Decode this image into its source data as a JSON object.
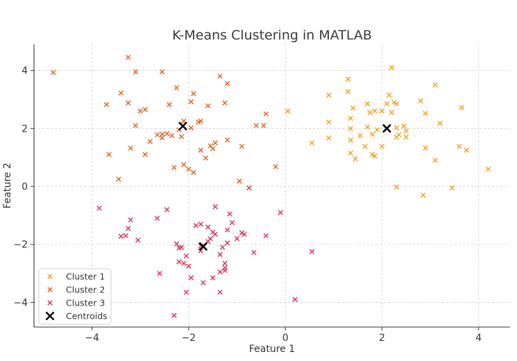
{
  "chart_data": {
    "type": "scatter",
    "title": "K-Means Clustering in MATLAB",
    "xlabel": "Feature 1",
    "ylabel": "Feature 2",
    "xlim": [
      -5.2,
      4.65
    ],
    "ylim": [
      -4.85,
      4.9
    ],
    "xticks": [
      -4,
      -2,
      0,
      2,
      4
    ],
    "yticks": [
      -4,
      -2,
      0,
      2,
      4
    ],
    "grid": true,
    "legend_position": "lower-left",
    "series": [
      {
        "name": "Cluster 1",
        "marker": "x",
        "color": "#F0A325",
        "points": [
          [
            2.2,
            4.1
          ],
          [
            1.3,
            3.7
          ],
          [
            1.3,
            3.27
          ],
          [
            3.1,
            3.5
          ],
          [
            0.9,
            3.15
          ],
          [
            2.15,
            3.15
          ],
          [
            2.25,
            2.9
          ],
          [
            2.8,
            2.95
          ],
          [
            1.7,
            2.85
          ],
          [
            2.1,
            2.85
          ],
          [
            2.3,
            2.85
          ],
          [
            3.65,
            2.72
          ],
          [
            1.4,
            2.7
          ],
          [
            1.85,
            2.6
          ],
          [
            1.75,
            2.55
          ],
          [
            2.0,
            2.6
          ],
          [
            2.2,
            2.55
          ],
          [
            2.9,
            2.52
          ],
          [
            0.05,
            2.6
          ],
          [
            1.35,
            2.35
          ],
          [
            0.9,
            2.22
          ],
          [
            3.2,
            2.18
          ],
          [
            1.35,
            2.0
          ],
          [
            1.7,
            2.05
          ],
          [
            2.3,
            2.02
          ],
          [
            2.45,
            2.08
          ],
          [
            2.5,
            1.92
          ],
          [
            1.9,
            1.95
          ],
          [
            2.3,
            1.7
          ],
          [
            2.5,
            1.7
          ],
          [
            2.35,
            1.78
          ],
          [
            1.55,
            1.75
          ],
          [
            1.8,
            1.8
          ],
          [
            1.35,
            1.6
          ],
          [
            0.9,
            1.67
          ],
          [
            0.55,
            1.5
          ],
          [
            1.65,
            1.38
          ],
          [
            2.0,
            1.38
          ],
          [
            2.9,
            1.33
          ],
          [
            3.6,
            1.38
          ],
          [
            3.75,
            1.25
          ],
          [
            1.35,
            1.15
          ],
          [
            1.8,
            1.1
          ],
          [
            1.85,
            1.05
          ],
          [
            1.45,
            0.95
          ],
          [
            3.1,
            0.9
          ],
          [
            4.2,
            0.6
          ],
          [
            2.3,
            -0.02
          ],
          [
            3.45,
            -0.05
          ],
          [
            2.85,
            -0.3
          ]
        ]
      },
      {
        "name": "Cluster 2",
        "marker": "x",
        "color": "#E0682A",
        "points": [
          [
            -3.25,
            4.45
          ],
          [
            -4.8,
            3.93
          ],
          [
            -3.1,
            3.95
          ],
          [
            -2.55,
            3.95
          ],
          [
            -1.35,
            3.8
          ],
          [
            -1.2,
            3.55
          ],
          [
            -2.25,
            3.4
          ],
          [
            -3.4,
            3.22
          ],
          [
            -1.9,
            3.2
          ],
          [
            -3.7,
            2.82
          ],
          [
            -3.25,
            2.88
          ],
          [
            -1.95,
            2.92
          ],
          [
            -1.25,
            2.88
          ],
          [
            -2.4,
            2.82
          ],
          [
            -1.6,
            2.78
          ],
          [
            -2.9,
            2.65
          ],
          [
            -3.0,
            2.6
          ],
          [
            -0.4,
            2.5
          ],
          [
            -2.1,
            2.25
          ],
          [
            -1.75,
            2.25
          ],
          [
            -1.8,
            2.22
          ],
          [
            -0.6,
            2.1
          ],
          [
            -0.45,
            2.1
          ],
          [
            -3.1,
            2.1
          ],
          [
            -1.95,
            2.02
          ],
          [
            -2.2,
            1.95
          ],
          [
            -2.45,
            1.82
          ],
          [
            -2.55,
            1.8
          ],
          [
            -2.65,
            1.78
          ],
          [
            -2.35,
            1.75
          ],
          [
            -2.55,
            1.68
          ],
          [
            -2.15,
            1.72
          ],
          [
            -2.8,
            1.55
          ],
          [
            -1.45,
            1.5
          ],
          [
            -1.2,
            1.6
          ],
          [
            -1.55,
            1.4
          ],
          [
            -1.5,
            1.3
          ],
          [
            -1.75,
            1.25
          ],
          [
            -0.9,
            1.38
          ],
          [
            -3.2,
            1.32
          ],
          [
            -3.65,
            1.1
          ],
          [
            -2.9,
            1.1
          ],
          [
            -1.65,
            0.98
          ],
          [
            -2.1,
            0.75
          ],
          [
            -2.3,
            0.65
          ],
          [
            -2.0,
            0.6
          ],
          [
            -1.9,
            0.48
          ],
          [
            -0.2,
            0.68
          ],
          [
            -3.45,
            0.25
          ],
          [
            -0.95,
            0.18
          ]
        ]
      },
      {
        "name": "Cluster 3",
        "marker": "x",
        "color": "#D93A5C",
        "points": [
          [
            -0.75,
            -0.05
          ],
          [
            -3.85,
            -0.75
          ],
          [
            -2.45,
            -0.8
          ],
          [
            -1.45,
            -0.7
          ],
          [
            -0.1,
            -0.9
          ],
          [
            -1.15,
            -0.95
          ],
          [
            -3.2,
            -1.15
          ],
          [
            -2.65,
            -1.1
          ],
          [
            -1.1,
            -1.25
          ],
          [
            -1.75,
            -1.3
          ],
          [
            -1.85,
            -1.35
          ],
          [
            -1.6,
            -1.4
          ],
          [
            -3.25,
            -1.45
          ],
          [
            -1.2,
            -1.5
          ],
          [
            -1.5,
            -1.58
          ],
          [
            -1.45,
            -1.65
          ],
          [
            -0.9,
            -1.6
          ],
          [
            -0.85,
            -1.65
          ],
          [
            -0.4,
            -1.7
          ],
          [
            -3.4,
            -1.72
          ],
          [
            -3.3,
            -1.7
          ],
          [
            -1.55,
            -1.8
          ],
          [
            -1.0,
            -1.8
          ],
          [
            -3.05,
            -1.85
          ],
          [
            -1.6,
            -1.9
          ],
          [
            -1.2,
            -1.95
          ],
          [
            -2.25,
            -1.98
          ],
          [
            -1.75,
            -2.05
          ],
          [
            -2.15,
            -2.1
          ],
          [
            -2.2,
            -2.12
          ],
          [
            -1.3,
            -2.1
          ],
          [
            -1.75,
            -2.22
          ],
          [
            -0.65,
            -2.28
          ],
          [
            0.55,
            -2.25
          ],
          [
            -1.35,
            -2.35
          ],
          [
            -2.05,
            -2.4
          ],
          [
            -2.2,
            -2.6
          ],
          [
            -2.1,
            -2.65
          ],
          [
            -2.0,
            -2.75
          ],
          [
            -1.25,
            -2.65
          ],
          [
            -1.25,
            -2.8
          ],
          [
            -2.6,
            -3.0
          ],
          [
            -1.25,
            -2.9
          ],
          [
            -1.35,
            -2.95
          ],
          [
            -1.5,
            -3.15
          ],
          [
            -1.95,
            -3.15
          ],
          [
            -1.7,
            -3.32
          ],
          [
            -2.05,
            -3.65
          ],
          [
            -1.35,
            -3.65
          ],
          [
            0.2,
            -3.9
          ],
          [
            -2.3,
            -4.45
          ]
        ]
      },
      {
        "name": "Centroids",
        "marker": "X",
        "color": "#000000",
        "points": [
          [
            -2.12,
            2.08
          ],
          [
            2.1,
            2.0
          ],
          [
            -1.7,
            -2.07
          ]
        ]
      }
    ]
  }
}
